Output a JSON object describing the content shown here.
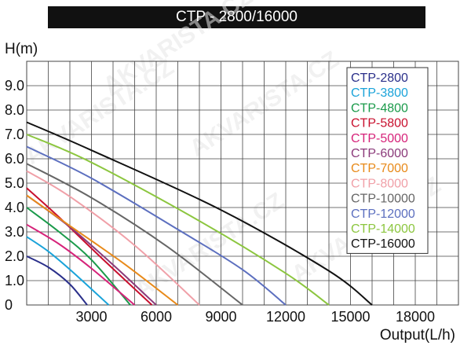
{
  "title": "CTP - 2800/16000",
  "watermark": "AKVARISTA.CZ",
  "chart_data": {
    "type": "line",
    "title": "CTP - 2800/16000",
    "xlabel": "Output(L/h)",
    "ylabel": "H(m)",
    "xlim": [
      0,
      20000
    ],
    "ylim": [
      0,
      10
    ],
    "x_ticks": [
      {
        "value": 3000,
        "label": "3000"
      },
      {
        "value": 6000,
        "label": "6000"
      },
      {
        "value": 9000,
        "label": "9000"
      },
      {
        "value": 12000,
        "label": "12000"
      },
      {
        "value": 15000,
        "label": "15000"
      },
      {
        "value": 18000,
        "label": "18000"
      }
    ],
    "y_ticks": [
      {
        "value": 0,
        "label": "0"
      },
      {
        "value": 1,
        "label": "1.0"
      },
      {
        "value": 2,
        "label": "2.0"
      },
      {
        "value": 3,
        "label": "3.0"
      },
      {
        "value": 4,
        "label": "4.0"
      },
      {
        "value": 5,
        "label": "5.0"
      },
      {
        "value": 6,
        "label": "6.0"
      },
      {
        "value": 7,
        "label": "7.0"
      },
      {
        "value": 8,
        "label": "8.0"
      },
      {
        "value": 9,
        "label": "9.0"
      }
    ],
    "grid": true,
    "legend_position": "top-right",
    "series": [
      {
        "name": "CTP-2800",
        "color": "#2a2f8a",
        "points": [
          [
            0,
            2.0
          ],
          [
            1000,
            1.55
          ],
          [
            2000,
            0.85
          ],
          [
            2800,
            0
          ]
        ]
      },
      {
        "name": "CTP-3800",
        "color": "#1aa3d9",
        "points": [
          [
            0,
            2.8
          ],
          [
            1000,
            2.2
          ],
          [
            2200,
            1.3
          ],
          [
            3800,
            0
          ]
        ]
      },
      {
        "name": "CTP-4800",
        "color": "#1a9a4a",
        "points": [
          [
            0,
            4.0
          ],
          [
            1500,
            3.0
          ],
          [
            3000,
            1.85
          ],
          [
            4800,
            0
          ]
        ]
      },
      {
        "name": "CTP-5800",
        "color": "#c8102e",
        "points": [
          [
            0,
            4.8
          ],
          [
            1500,
            3.6
          ],
          [
            3500,
            1.9
          ],
          [
            5800,
            0
          ]
        ]
      },
      {
        "name": "CTP-5000",
        "color": "#d6237a",
        "points": [
          [
            0,
            3.3
          ],
          [
            1500,
            2.5
          ],
          [
            3000,
            1.5
          ],
          [
            5000,
            0
          ]
        ]
      },
      {
        "name": "CTP-6000",
        "color": "#8b3a7a",
        "points": [
          [
            0,
            4.5
          ],
          [
            2000,
            3.2
          ],
          [
            4000,
            1.65
          ],
          [
            6000,
            0
          ]
        ]
      },
      {
        "name": "CTP-7000",
        "color": "#e88a1a",
        "points": [
          [
            0,
            4.5
          ],
          [
            2000,
            3.25
          ],
          [
            4500,
            1.7
          ],
          [
            7000,
            0
          ]
        ]
      },
      {
        "name": "CTP-8000",
        "color": "#f0a0a8",
        "points": [
          [
            0,
            5.5
          ],
          [
            2000,
            4.45
          ],
          [
            5000,
            2.45
          ],
          [
            8000,
            0
          ]
        ]
      },
      {
        "name": "CTP-10000",
        "color": "#666666",
        "points": [
          [
            0,
            5.8
          ],
          [
            3000,
            4.4
          ],
          [
            6500,
            2.4
          ],
          [
            10000,
            0
          ]
        ]
      },
      {
        "name": "CTP-12000",
        "color": "#5c6fbf",
        "points": [
          [
            0,
            6.5
          ],
          [
            3000,
            5.2
          ],
          [
            7000,
            3.1
          ],
          [
            10000,
            1.45
          ],
          [
            12000,
            0
          ]
        ]
      },
      {
        "name": "CTP-14000",
        "color": "#8cc63f",
        "points": [
          [
            0,
            7.0
          ],
          [
            3000,
            5.85
          ],
          [
            8000,
            3.45
          ],
          [
            12000,
            1.3
          ],
          [
            14000,
            0
          ]
        ]
      },
      {
        "name": "CTP-16000",
        "color": "#111111",
        "points": [
          [
            0,
            7.5
          ],
          [
            3000,
            6.35
          ],
          [
            9000,
            3.9
          ],
          [
            14000,
            1.4
          ],
          [
            16000,
            0
          ]
        ]
      }
    ]
  }
}
